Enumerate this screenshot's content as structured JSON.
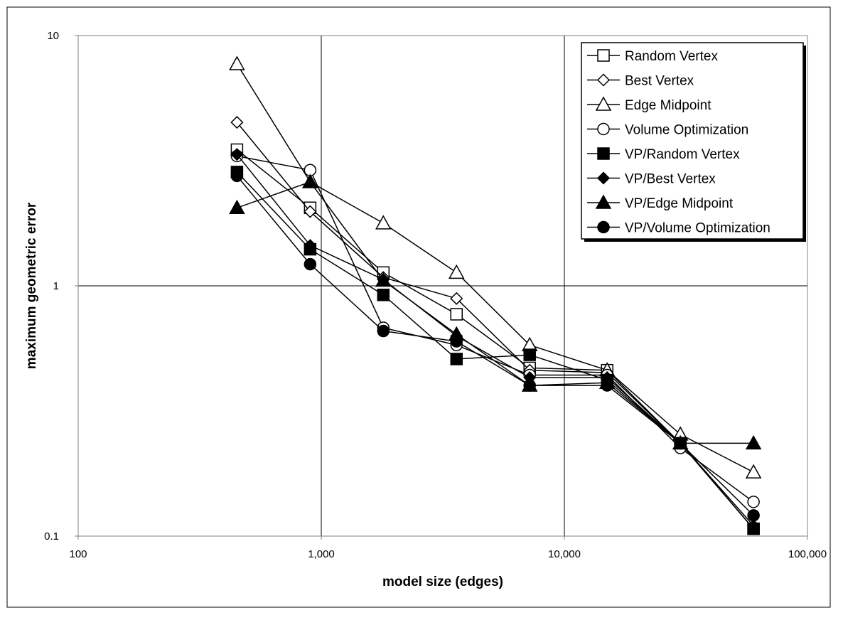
{
  "chart_data": {
    "type": "line",
    "xscale": "log",
    "yscale": "log",
    "xlabel": "model size (edges)",
    "ylabel": "maximum geometric error",
    "xlim": [
      100,
      100000
    ],
    "ylim": [
      0.1,
      10
    ],
    "x_tick_values": [
      100,
      1000,
      10000,
      100000
    ],
    "x_tick_labels": [
      "100",
      "1,000",
      "10,000",
      "100,000"
    ],
    "y_tick_values": [
      0.1,
      1,
      10
    ],
    "y_tick_labels": [
      "0.1",
      "1",
      "10"
    ],
    "grid": true,
    "legend_position": "top-right",
    "x": [
      450,
      900,
      1800,
      3600,
      7200,
      15000,
      30000,
      60000
    ],
    "series": [
      {
        "name": "Random Vertex",
        "marker": "square",
        "filled": false,
        "values": [
          3.5,
          2.05,
          1.13,
          0.77,
          0.47,
          0.46,
          0.235,
          0.107
        ]
      },
      {
        "name": "Best Vertex",
        "marker": "diamond",
        "filled": false,
        "values": [
          4.5,
          1.98,
          1.08,
          0.89,
          0.46,
          0.45,
          0.235,
          0.107
        ]
      },
      {
        "name": "Edge Midpoint",
        "marker": "triangle",
        "filled": false,
        "values": [
          7.7,
          2.6,
          1.78,
          1.13,
          0.58,
          0.46,
          0.255,
          0.18
        ]
      },
      {
        "name": "Volume Optimization",
        "marker": "circle",
        "filled": false,
        "values": [
          3.3,
          2.9,
          0.68,
          0.58,
          0.44,
          0.44,
          0.225,
          0.137
        ]
      },
      {
        "name": "VP/Random Vertex",
        "marker": "square",
        "filled": true,
        "values": [
          2.85,
          1.4,
          0.92,
          0.51,
          0.53,
          0.42,
          0.235,
          0.107
        ]
      },
      {
        "name": "VP/Best Vertex",
        "marker": "diamond",
        "filled": true,
        "values": [
          3.35,
          1.45,
          1.06,
          0.63,
          0.43,
          0.43,
          0.235,
          0.11
        ]
      },
      {
        "name": "VP/Edge Midpoint",
        "marker": "triangle",
        "filled": true,
        "values": [
          2.05,
          2.6,
          1.05,
          0.64,
          0.4,
          0.41,
          0.235,
          0.235
        ]
      },
      {
        "name": "VP/Volume Optimization",
        "marker": "circle",
        "filled": true,
        "values": [
          2.75,
          1.22,
          0.66,
          0.6,
          0.4,
          0.4,
          0.235,
          0.121
        ]
      }
    ]
  }
}
